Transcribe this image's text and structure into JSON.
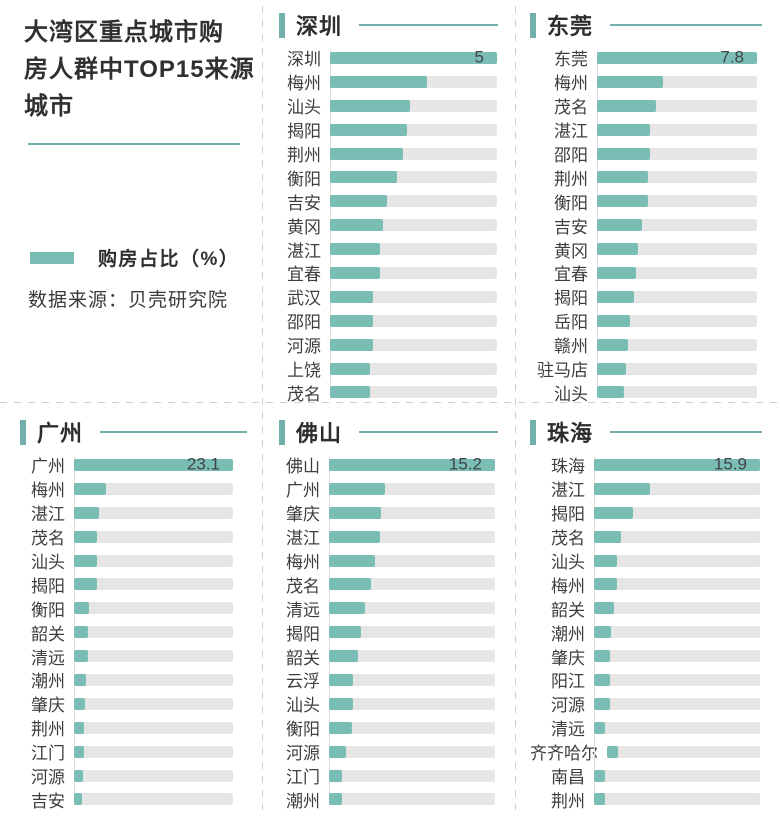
{
  "info": {
    "title": "大湾区重点城市购房人群中TOP15来源城市",
    "title_lines": [
      "大湾区重点城市购",
      "房人群中TOP15来源",
      "城市"
    ],
    "legend_label": "购房占比（%）",
    "source": "数据来源：贝壳研究院"
  },
  "colors": {
    "accent": "#7abdb5",
    "accent_line": "#74b0ab",
    "track": "#e6e6e6",
    "dash": "#cfcfcf",
    "text": "#3e3e3e",
    "title": "#2d2d2d"
  },
  "chart_data": [
    {
      "type": "bar",
      "orientation": "horizontal",
      "title": "深圳",
      "unit": "购房占比（%）",
      "xlim": [
        0,
        5
      ],
      "value_label_shown": "5",
      "categories": [
        "深圳",
        "梅州",
        "汕头",
        "揭阳",
        "荆州",
        "衡阳",
        "吉安",
        "黄冈",
        "湛江",
        "宜春",
        "武汉",
        "邵阳",
        "河源",
        "上饶",
        "茂名"
      ],
      "values": [
        5,
        2.9,
        2.4,
        2.3,
        2.2,
        2.0,
        1.7,
        1.6,
        1.5,
        1.5,
        1.3,
        1.3,
        1.3,
        1.2,
        1.2
      ]
    },
    {
      "type": "bar",
      "orientation": "horizontal",
      "title": "东莞",
      "unit": "购房占比（%）",
      "xlim": [
        0,
        7.8
      ],
      "value_label_shown": "7.8",
      "categories": [
        "东莞",
        "梅州",
        "茂名",
        "湛江",
        "邵阳",
        "荆州",
        "衡阳",
        "吉安",
        "黄冈",
        "宜春",
        "揭阳",
        "岳阳",
        "赣州",
        "驻马店",
        "汕头"
      ],
      "values": [
        7.8,
        3.2,
        2.9,
        2.6,
        2.6,
        2.5,
        2.5,
        2.2,
        2.0,
        1.9,
        1.8,
        1.6,
        1.5,
        1.4,
        1.3
      ]
    },
    {
      "type": "bar",
      "orientation": "horizontal",
      "title": "广州",
      "unit": "购房占比（%）",
      "xlim": [
        0,
        23.1
      ],
      "value_label_shown": "23.1",
      "categories": [
        "广州",
        "梅州",
        "湛江",
        "茂名",
        "汕头",
        "揭阳",
        "衡阳",
        "韶关",
        "清远",
        "潮州",
        "肇庆",
        "荆州",
        "江门",
        "河源",
        "吉安"
      ],
      "values": [
        23.1,
        4.7,
        3.7,
        3.4,
        3.4,
        3.3,
        2.2,
        2.1,
        2.0,
        1.7,
        1.6,
        1.4,
        1.4,
        1.3,
        1.2
      ]
    },
    {
      "type": "bar",
      "orientation": "horizontal",
      "title": "佛山",
      "unit": "购房占比（%）",
      "xlim": [
        0,
        15.2
      ],
      "value_label_shown": "15.2",
      "categories": [
        "佛山",
        "广州",
        "肇庆",
        "湛江",
        "梅州",
        "茂名",
        "清远",
        "揭阳",
        "韶关",
        "云浮",
        "汕头",
        "衡阳",
        "河源",
        "江门",
        "潮州"
      ],
      "values": [
        15.2,
        5.1,
        4.8,
        4.7,
        4.2,
        3.8,
        3.3,
        2.9,
        2.7,
        2.2,
        2.2,
        2.1,
        1.6,
        1.2,
        1.2
      ]
    },
    {
      "type": "bar",
      "orientation": "horizontal",
      "title": "珠海",
      "unit": "购房占比（%）",
      "xlim": [
        0,
        15.9
      ],
      "value_label_shown": "15.9",
      "categories": [
        "珠海",
        "湛江",
        "揭阳",
        "茂名",
        "汕头",
        "梅州",
        "韶关",
        "潮州",
        "肇庆",
        "阳江",
        "河源",
        "清远",
        "齐齐哈尔",
        "南昌",
        "荆州"
      ],
      "values": [
        15.9,
        5.4,
        3.7,
        2.6,
        2.2,
        2.2,
        1.9,
        1.6,
        1.5,
        1.5,
        1.5,
        1.1,
        1.1,
        1.1,
        1.1
      ]
    }
  ]
}
